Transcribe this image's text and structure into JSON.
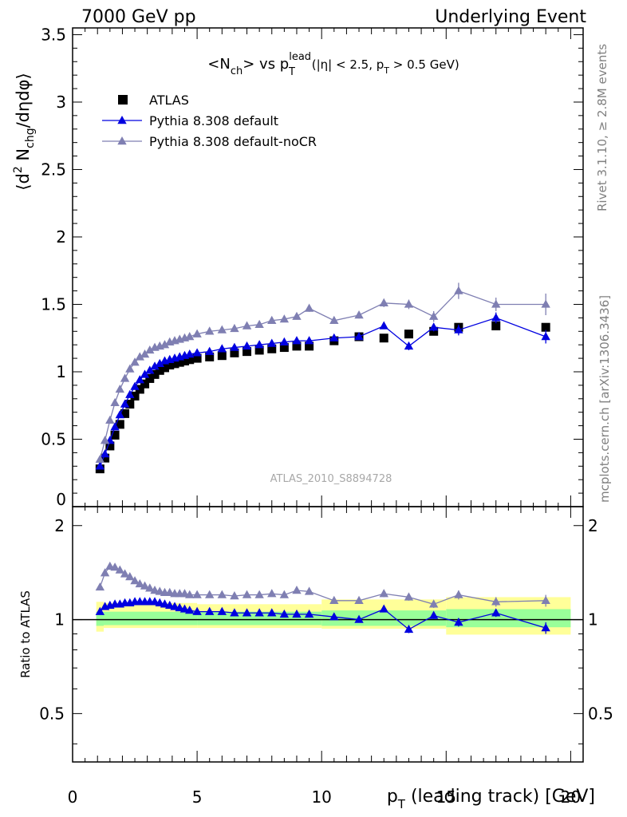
{
  "header": {
    "left": "7000 GeV pp",
    "right": "Underlying Event"
  },
  "side_text": {
    "rivet": "Rivet 3.1.10, ≥ 2.8M events",
    "mcplots": "mcplots.cern.ch [arXiv:1306.3436]"
  },
  "watermark": "ATLAS_2010_S8894728",
  "chart_data": [
    {
      "type": "scatter",
      "panel": "main",
      "title": "<N_ch> vs p_T^lead (|η| < 2.5, p_T > 0.5 GeV)",
      "title_parts": {
        "a": "<N",
        "a_sub": "ch",
        "b": "> vs p",
        "b_sub": "T",
        "b_sup": "lead",
        "c": " (|η| < 2.5, p",
        "c_sub": "T",
        "d": " > 0.5 GeV)"
      },
      "ylabel": "⟨d² N_chg/dηdφ⟩",
      "ylabel_parts": {
        "a": "⟨d",
        "a_sup": "2",
        "b": " N",
        "b_sub": "chg",
        "c": "/dηdφ⟩"
      },
      "xlim": [
        0,
        20.5
      ],
      "ylim": [
        0,
        3.55
      ],
      "y_ticks": [
        {
          "v": 0,
          "label": "0"
        },
        {
          "v": 0.5,
          "label": "0.5"
        },
        {
          "v": 1,
          "label": "1"
        },
        {
          "v": 1.5,
          "label": "1.5"
        },
        {
          "v": 2,
          "label": "2"
        },
        {
          "v": 2.5,
          "label": "2.5"
        },
        {
          "v": 3,
          "label": "3"
        },
        {
          "v": 3.5,
          "label": "3.5"
        }
      ],
      "legend_position": "top-left",
      "series": [
        {
          "name": "ATLAS",
          "marker": "square",
          "color": "#000000",
          "x": [
            1.1,
            1.3,
            1.5,
            1.7,
            1.9,
            2.1,
            2.3,
            2.5,
            2.7,
            2.9,
            3.1,
            3.3,
            3.5,
            3.7,
            3.9,
            4.1,
            4.3,
            4.5,
            4.7,
            5.0,
            5.5,
            6.0,
            6.5,
            7.0,
            7.5,
            8.0,
            8.5,
            9.0,
            9.5,
            10.5,
            11.5,
            12.5,
            13.5,
            14.5,
            15.5,
            17.0,
            19.0
          ],
          "y": [
            0.28,
            0.36,
            0.45,
            0.53,
            0.61,
            0.69,
            0.76,
            0.82,
            0.87,
            0.91,
            0.95,
            0.98,
            1.01,
            1.03,
            1.05,
            1.06,
            1.07,
            1.08,
            1.09,
            1.1,
            1.11,
            1.12,
            1.14,
            1.15,
            1.16,
            1.17,
            1.18,
            1.19,
            1.19,
            1.23,
            1.26,
            1.25,
            1.28,
            1.3,
            1.33,
            1.34,
            1.33
          ]
        },
        {
          "name": "Pythia 8.308 default",
          "marker": "triangle",
          "color": "#0000e0",
          "x": [
            1.1,
            1.3,
            1.5,
            1.7,
            1.9,
            2.1,
            2.3,
            2.5,
            2.7,
            2.9,
            3.1,
            3.3,
            3.5,
            3.7,
            3.9,
            4.1,
            4.3,
            4.5,
            4.7,
            5.0,
            5.5,
            6.0,
            6.5,
            7.0,
            7.5,
            8.0,
            8.5,
            9.0,
            9.5,
            10.5,
            11.5,
            12.5,
            13.5,
            14.5,
            15.5,
            17.0,
            19.0
          ],
          "y": [
            0.3,
            0.39,
            0.49,
            0.59,
            0.68,
            0.76,
            0.83,
            0.89,
            0.94,
            0.98,
            1.01,
            1.04,
            1.06,
            1.08,
            1.09,
            1.1,
            1.11,
            1.12,
            1.13,
            1.14,
            1.15,
            1.17,
            1.18,
            1.19,
            1.2,
            1.21,
            1.22,
            1.23,
            1.23,
            1.25,
            1.26,
            1.34,
            1.19,
            1.33,
            1.31,
            1.4,
            1.26
          ],
          "yerr": [
            0.005,
            0.005,
            0.005,
            0.005,
            0.005,
            0.005,
            0.005,
            0.005,
            0.005,
            0.005,
            0.005,
            0.005,
            0.005,
            0.005,
            0.005,
            0.005,
            0.005,
            0.005,
            0.005,
            0.005,
            0.005,
            0.005,
            0.005,
            0.005,
            0.005,
            0.005,
            0.005,
            0.005,
            0.005,
            0.01,
            0.015,
            0.02,
            0.03,
            0.03,
            0.04,
            0.04,
            0.05
          ]
        },
        {
          "name": "Pythia 8.308 default-noCR",
          "marker": "triangle",
          "color": "#7f7fb2",
          "x": [
            1.1,
            1.3,
            1.5,
            1.7,
            1.9,
            2.1,
            2.3,
            2.5,
            2.7,
            2.9,
            3.1,
            3.3,
            3.5,
            3.7,
            3.9,
            4.1,
            4.3,
            4.5,
            4.7,
            5.0,
            5.5,
            6.0,
            6.5,
            7.0,
            7.5,
            8.0,
            8.5,
            9.0,
            9.5,
            10.5,
            11.5,
            12.5,
            13.5,
            14.5,
            15.5,
            17.0,
            19.0
          ],
          "y": [
            0.35,
            0.49,
            0.64,
            0.77,
            0.87,
            0.95,
            1.02,
            1.07,
            1.11,
            1.13,
            1.16,
            1.18,
            1.19,
            1.2,
            1.22,
            1.23,
            1.24,
            1.25,
            1.26,
            1.28,
            1.3,
            1.31,
            1.32,
            1.34,
            1.35,
            1.38,
            1.39,
            1.41,
            1.47,
            1.38,
            1.42,
            1.51,
            1.5,
            1.41,
            1.6,
            1.5,
            1.5
          ],
          "yerr": [
            0.005,
            0.005,
            0.005,
            0.005,
            0.005,
            0.005,
            0.005,
            0.005,
            0.005,
            0.005,
            0.005,
            0.005,
            0.005,
            0.005,
            0.005,
            0.005,
            0.005,
            0.005,
            0.005,
            0.01,
            0.01,
            0.01,
            0.01,
            0.01,
            0.015,
            0.015,
            0.015,
            0.02,
            0.025,
            0.02,
            0.025,
            0.03,
            0.035,
            0.04,
            0.06,
            0.05,
            0.08
          ]
        }
      ]
    },
    {
      "type": "scatter",
      "panel": "ratio",
      "ylabel": "Ratio to ATLAS",
      "xlabel": "p_T (leading track) [GeV]",
      "xlabel_parts": {
        "a": "p",
        "a_sub": "T",
        "b": " (leading track) [GeV]"
      },
      "xlim": [
        0,
        20.5
      ],
      "ylim": [
        0.35,
        2.3
      ],
      "x_ticks": [
        {
          "v": 0,
          "label": "0"
        },
        {
          "v": 5,
          "label": "5"
        },
        {
          "v": 10,
          "label": "10"
        },
        {
          "v": 15,
          "label": "15"
        },
        {
          "v": 20,
          "label": "20"
        }
      ],
      "y_ticks": [
        {
          "v": 0.5,
          "label": "0.5"
        },
        {
          "v": 1,
          "label": "1"
        },
        {
          "v": 2,
          "label": "2"
        }
      ],
      "reference_line": 1,
      "bands": {
        "yellow_color": "#ffff99",
        "green_color": "#99ff99",
        "edges": [
          0.95,
          1.25,
          5,
          10,
          15,
          20
        ],
        "yellow": [
          [
            0.915,
            1.14
          ],
          [
            0.94,
            1.13
          ],
          [
            0.94,
            1.12
          ],
          [
            0.935,
            1.16
          ],
          [
            0.895,
            1.18
          ]
        ],
        "green": [
          [
            0.955,
            1.06
          ],
          [
            0.96,
            1.06
          ],
          [
            0.96,
            1.06
          ],
          [
            0.955,
            1.07
          ],
          [
            0.945,
            1.08
          ]
        ]
      },
      "series": [
        {
          "name": "Pythia 8.308 default",
          "marker": "triangle",
          "color": "#0000e0",
          "x": [
            1.1,
            1.3,
            1.5,
            1.7,
            1.9,
            2.1,
            2.3,
            2.5,
            2.7,
            2.9,
            3.1,
            3.3,
            3.5,
            3.7,
            3.9,
            4.1,
            4.3,
            4.5,
            4.7,
            5.0,
            5.5,
            6.0,
            6.5,
            7.0,
            7.5,
            8.0,
            8.5,
            9.0,
            9.5,
            10.5,
            11.5,
            12.5,
            13.5,
            14.5,
            15.5,
            17.0,
            19.0
          ],
          "y": [
            1.06,
            1.1,
            1.11,
            1.12,
            1.12,
            1.13,
            1.13,
            1.14,
            1.14,
            1.14,
            1.14,
            1.14,
            1.13,
            1.12,
            1.11,
            1.1,
            1.09,
            1.08,
            1.07,
            1.06,
            1.06,
            1.06,
            1.05,
            1.05,
            1.05,
            1.05,
            1.04,
            1.04,
            1.04,
            1.02,
            1.0,
            1.08,
            0.93,
            1.03,
            0.98,
            1.05,
            0.94
          ],
          "yerr": [
            0.01,
            0.005,
            0.005,
            0.005,
            0.005,
            0.005,
            0.005,
            0.005,
            0.005,
            0.005,
            0.005,
            0.005,
            0.005,
            0.005,
            0.005,
            0.005,
            0.005,
            0.005,
            0.005,
            0.005,
            0.005,
            0.005,
            0.005,
            0.005,
            0.005,
            0.005,
            0.005,
            0.005,
            0.005,
            0.01,
            0.01,
            0.02,
            0.025,
            0.025,
            0.03,
            0.03,
            0.04
          ]
        },
        {
          "name": "Pythia 8.308 default-noCR",
          "marker": "triangle",
          "color": "#7f7fb2",
          "x": [
            1.1,
            1.3,
            1.5,
            1.7,
            1.9,
            2.1,
            2.3,
            2.5,
            2.7,
            2.9,
            3.1,
            3.3,
            3.5,
            3.7,
            3.9,
            4.1,
            4.3,
            4.5,
            4.7,
            5.0,
            5.5,
            6.0,
            6.5,
            7.0,
            7.5,
            8.0,
            8.5,
            9.0,
            9.5,
            10.5,
            11.5,
            12.5,
            13.5,
            14.5,
            15.5,
            17.0,
            19.0
          ],
          "y": [
            1.27,
            1.41,
            1.48,
            1.47,
            1.44,
            1.4,
            1.37,
            1.33,
            1.3,
            1.28,
            1.26,
            1.24,
            1.23,
            1.22,
            1.22,
            1.21,
            1.21,
            1.21,
            1.2,
            1.2,
            1.2,
            1.2,
            1.19,
            1.2,
            1.2,
            1.21,
            1.2,
            1.24,
            1.23,
            1.15,
            1.15,
            1.21,
            1.18,
            1.12,
            1.2,
            1.14,
            1.15
          ],
          "yerr": [
            0.01,
            0.005,
            0.005,
            0.005,
            0.005,
            0.005,
            0.005,
            0.005,
            0.005,
            0.005,
            0.005,
            0.005,
            0.005,
            0.005,
            0.005,
            0.005,
            0.005,
            0.005,
            0.005,
            0.005,
            0.01,
            0.01,
            0.01,
            0.01,
            0.01,
            0.01,
            0.01,
            0.015,
            0.02,
            0.015,
            0.02,
            0.03,
            0.03,
            0.03,
            0.04,
            0.04,
            0.05
          ]
        }
      ]
    }
  ]
}
